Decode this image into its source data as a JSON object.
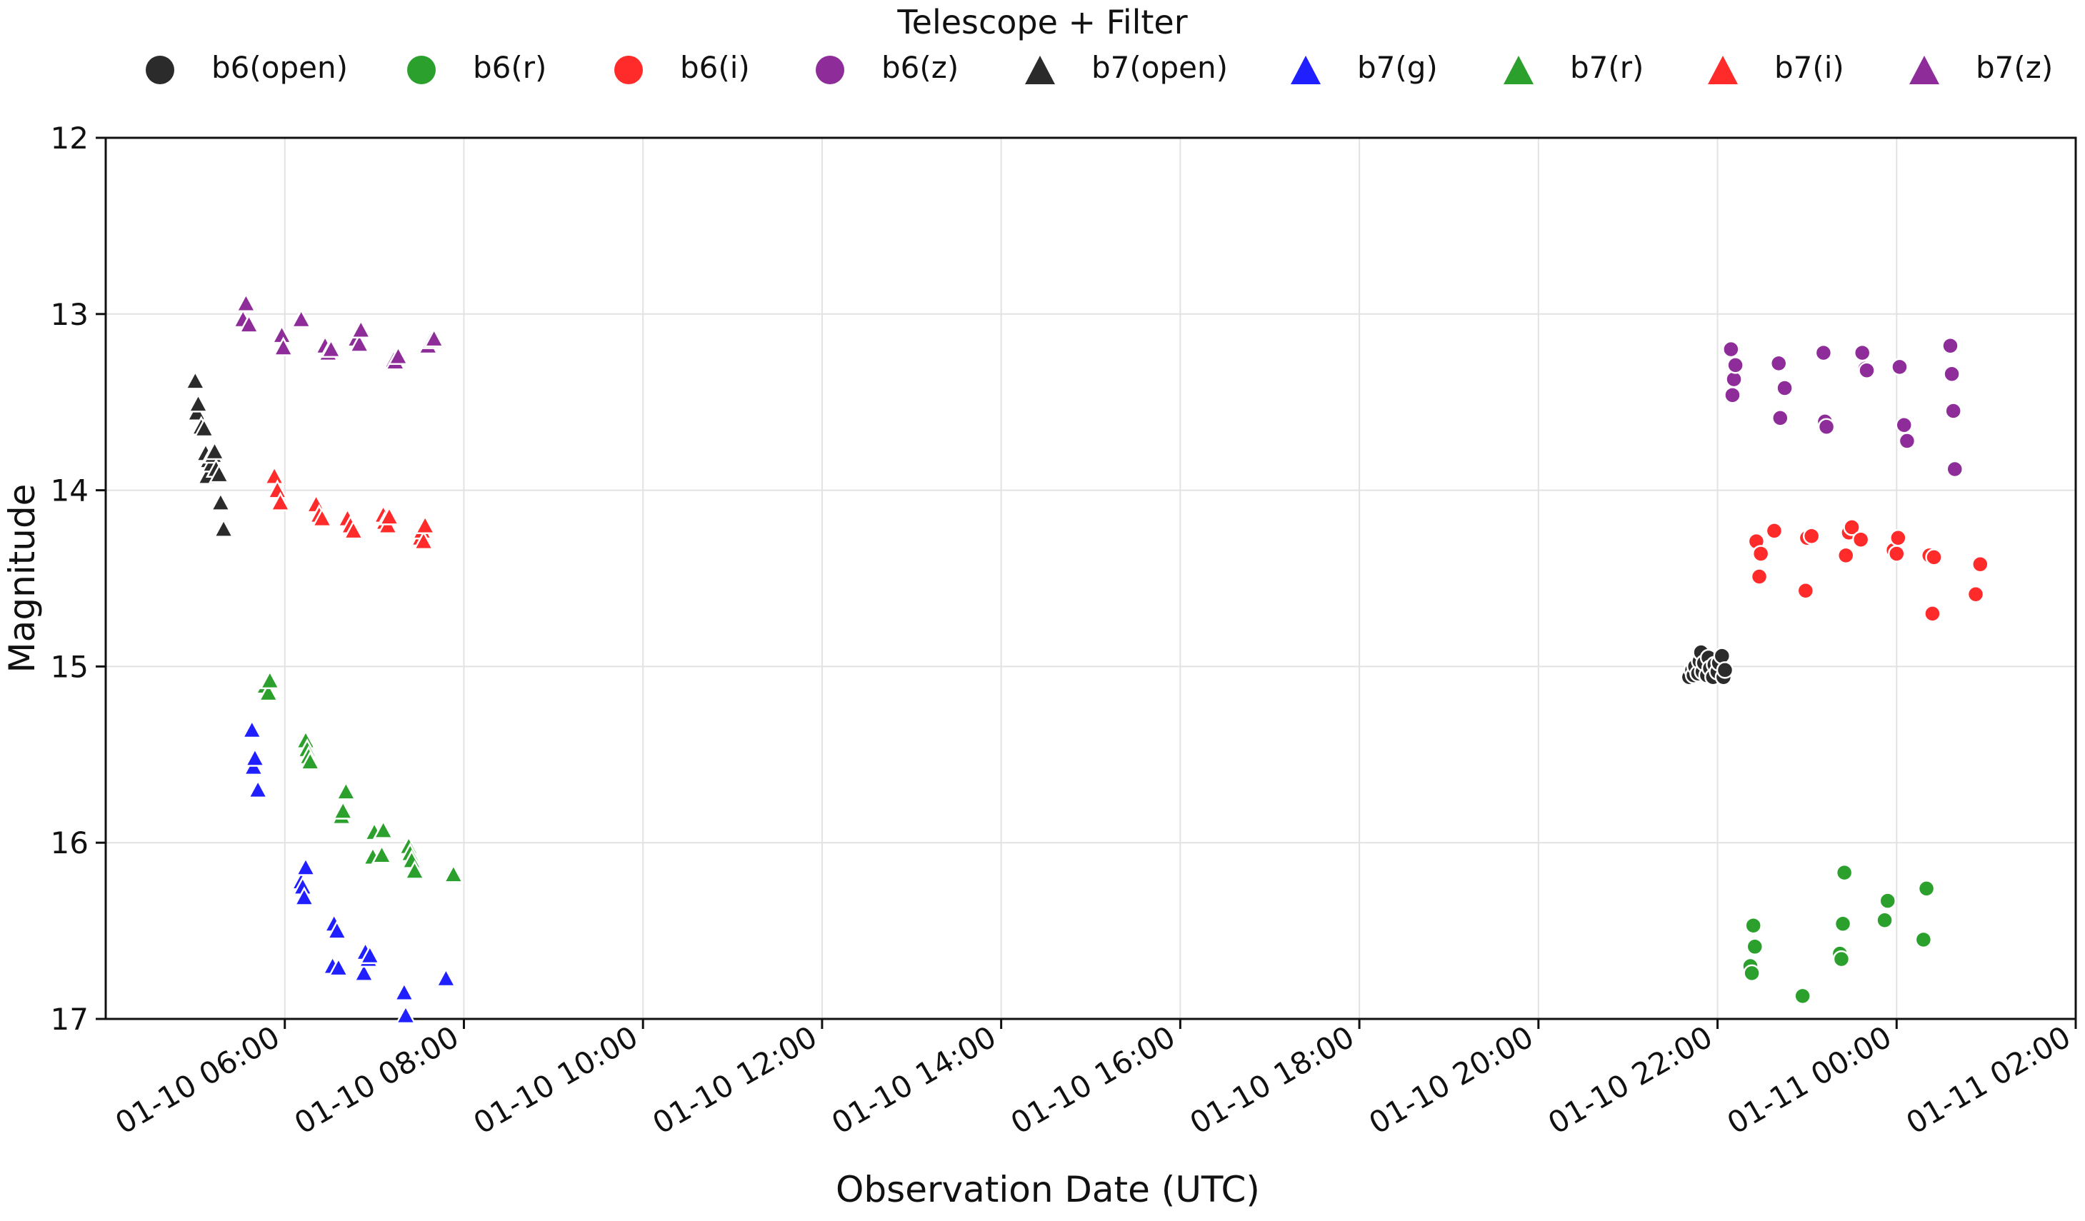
{
  "chart_data": {
    "type": "scatter",
    "xlabel": "Observation Date (UTC)",
    "ylabel": "Magnitude",
    "x_type": "datetime",
    "xlim": [
      "2026-01-10T04:00",
      "2026-01-11T02:00"
    ],
    "ylim": [
      17,
      12
    ],
    "y_inverted": true,
    "grid": true,
    "x_ticks": [
      "2026-01-10T06:00",
      "2026-01-10T08:00",
      "2026-01-10T10:00",
      "2026-01-10T12:00",
      "2026-01-10T14:00",
      "2026-01-10T16:00",
      "2026-01-10T18:00",
      "2026-01-10T20:00",
      "2026-01-10T22:00",
      "2026-01-11T00:00",
      "2026-01-11T02:00"
    ],
    "x_tick_labels": [
      "01-10 06:00",
      "01-10 08:00",
      "01-10 10:00",
      "01-10 12:00",
      "01-10 14:00",
      "01-10 16:00",
      "01-10 18:00",
      "01-10 20:00",
      "01-10 22:00",
      "01-11 00:00",
      "01-11 02:00"
    ],
    "y_ticks": [
      12,
      13,
      14,
      15,
      16,
      17
    ],
    "y_tick_labels": [
      "12",
      "13",
      "14",
      "15",
      "16",
      "17"
    ],
    "legend": {
      "title": "Telescope + Filter",
      "placement": "top-center"
    },
    "series": [
      {
        "name": "b6(open)",
        "marker": "circle",
        "color": "#2b2b2b",
        "points": [
          [
            "2026-01-10T21:41",
            15.06
          ],
          [
            "2026-01-10T21:43",
            15.02
          ],
          [
            "2026-01-10T21:44",
            15.05
          ],
          [
            "2026-01-10T21:45",
            15.0
          ],
          [
            "2026-01-10T21:47",
            15.04
          ],
          [
            "2026-01-10T21:48",
            14.97
          ],
          [
            "2026-01-10T21:49",
            14.92
          ],
          [
            "2026-01-10T21:50",
            15.03
          ],
          [
            "2026-01-10T21:51",
            14.98
          ],
          [
            "2026-01-10T21:53",
            15.05
          ],
          [
            "2026-01-10T21:54",
            14.95
          ],
          [
            "2026-01-10T21:55",
            15.01
          ],
          [
            "2026-01-10T21:57",
            15.06
          ],
          [
            "2026-01-10T21:58",
            14.99
          ],
          [
            "2026-01-10T22:00",
            15.03
          ],
          [
            "2026-01-10T22:01",
            14.98
          ],
          [
            "2026-01-10T22:03",
            14.94
          ],
          [
            "2026-01-10T22:04",
            15.06
          ],
          [
            "2026-01-10T22:05",
            15.02
          ]
        ]
      },
      {
        "name": "b6(r)",
        "marker": "circle",
        "color": "#2ca02c",
        "points": [
          [
            "2026-01-10T22:22",
            16.7
          ],
          [
            "2026-01-10T22:23",
            16.74
          ],
          [
            "2026-01-10T22:24",
            16.47
          ],
          [
            "2026-01-10T22:25",
            16.59
          ],
          [
            "2026-01-10T22:57",
            16.87
          ],
          [
            "2026-01-10T23:22",
            16.63
          ],
          [
            "2026-01-10T23:23",
            16.66
          ],
          [
            "2026-01-10T23:24",
            16.46
          ],
          [
            "2026-01-10T23:25",
            16.17
          ],
          [
            "2026-01-10T23:52",
            16.44
          ],
          [
            "2026-01-10T23:54",
            16.33
          ],
          [
            "2026-01-11T00:18",
            16.55
          ],
          [
            "2026-01-11T00:20",
            16.26
          ]
        ]
      },
      {
        "name": "b6(i)",
        "marker": "circle",
        "color": "#ff2a2a",
        "points": [
          [
            "2026-01-10T22:26",
            14.29
          ],
          [
            "2026-01-10T22:28",
            14.49
          ],
          [
            "2026-01-10T22:29",
            14.36
          ],
          [
            "2026-01-10T22:38",
            14.23
          ],
          [
            "2026-01-10T22:59",
            14.57
          ],
          [
            "2026-01-10T23:00",
            14.27
          ],
          [
            "2026-01-10T23:03",
            14.26
          ],
          [
            "2026-01-10T23:26",
            14.37
          ],
          [
            "2026-01-10T23:28",
            14.24
          ],
          [
            "2026-01-10T23:30",
            14.21
          ],
          [
            "2026-01-10T23:36",
            14.28
          ],
          [
            "2026-01-10T23:58",
            14.34
          ],
          [
            "2026-01-11T00:00",
            14.36
          ],
          [
            "2026-01-11T00:01",
            14.27
          ],
          [
            "2026-01-11T00:22",
            14.37
          ],
          [
            "2026-01-11T00:24",
            14.7
          ],
          [
            "2026-01-11T00:25",
            14.38
          ],
          [
            "2026-01-11T00:53",
            14.59
          ],
          [
            "2026-01-11T00:56",
            14.42
          ]
        ]
      },
      {
        "name": "b6(z)",
        "marker": "circle",
        "color": "#8e2c9a",
        "points": [
          [
            "2026-01-10T22:09",
            13.2
          ],
          [
            "2026-01-10T22:10",
            13.46
          ],
          [
            "2026-01-10T22:11",
            13.37
          ],
          [
            "2026-01-10T22:12",
            13.29
          ],
          [
            "2026-01-10T22:41",
            13.28
          ],
          [
            "2026-01-10T22:42",
            13.59
          ],
          [
            "2026-01-10T22:45",
            13.42
          ],
          [
            "2026-01-10T23:11",
            13.22
          ],
          [
            "2026-01-10T23:12",
            13.61
          ],
          [
            "2026-01-10T23:13",
            13.64
          ],
          [
            "2026-01-10T23:37",
            13.22
          ],
          [
            "2026-01-10T23:39",
            13.31
          ],
          [
            "2026-01-10T23:40",
            13.32
          ],
          [
            "2026-01-11T00:02",
            13.3
          ],
          [
            "2026-01-11T00:05",
            13.63
          ],
          [
            "2026-01-11T00:07",
            13.72
          ],
          [
            "2026-01-11T00:36",
            13.18
          ],
          [
            "2026-01-11T00:37",
            13.34
          ],
          [
            "2026-01-11T00:38",
            13.55
          ],
          [
            "2026-01-11T00:39",
            13.88
          ]
        ]
      },
      {
        "name": "b7(open)",
        "marker": "triangle",
        "color": "#2b2b2b",
        "points": [
          [
            "2026-01-10T05:00",
            13.38
          ],
          [
            "2026-01-10T05:01",
            13.56
          ],
          [
            "2026-01-10T05:02",
            13.51
          ],
          [
            "2026-01-10T05:04",
            13.64
          ],
          [
            "2026-01-10T05:06",
            13.65
          ],
          [
            "2026-01-10T05:07",
            13.79
          ],
          [
            "2026-01-10T05:08",
            13.92
          ],
          [
            "2026-01-10T05:09",
            13.83
          ],
          [
            "2026-01-10T05:11",
            13.85
          ],
          [
            "2026-01-10T05:12",
            13.8
          ],
          [
            "2026-01-10T05:13",
            13.78
          ],
          [
            "2026-01-10T05:14",
            13.88
          ],
          [
            "2026-01-10T05:16",
            13.91
          ],
          [
            "2026-01-10T05:17",
            14.07
          ],
          [
            "2026-01-10T05:19",
            14.22
          ]
        ]
      },
      {
        "name": "b7(g)",
        "marker": "triangle",
        "color": "#1f1fff",
        "points": [
          [
            "2026-01-10T05:38",
            15.36
          ],
          [
            "2026-01-10T05:39",
            15.57
          ],
          [
            "2026-01-10T05:40",
            15.52
          ],
          [
            "2026-01-10T05:42",
            15.7
          ],
          [
            "2026-01-10T06:11",
            16.22
          ],
          [
            "2026-01-10T06:12",
            16.25
          ],
          [
            "2026-01-10T06:13",
            16.31
          ],
          [
            "2026-01-10T06:14",
            16.14
          ],
          [
            "2026-01-10T06:32",
            16.7
          ],
          [
            "2026-01-10T06:33",
            16.46
          ],
          [
            "2026-01-10T06:35",
            16.5
          ],
          [
            "2026-01-10T06:36",
            16.71
          ],
          [
            "2026-01-10T06:53",
            16.74
          ],
          [
            "2026-01-10T06:54",
            16.62
          ],
          [
            "2026-01-10T06:56",
            16.66
          ],
          [
            "2026-01-10T06:57",
            16.64
          ],
          [
            "2026-01-10T07:20",
            16.85
          ],
          [
            "2026-01-10T07:21",
            16.98
          ],
          [
            "2026-01-10T07:48",
            16.77
          ]
        ]
      },
      {
        "name": "b7(r)",
        "marker": "triangle",
        "color": "#2ca02c",
        "points": [
          [
            "2026-01-10T05:47",
            15.11
          ],
          [
            "2026-01-10T05:49",
            15.15
          ],
          [
            "2026-01-10T05:50",
            15.08
          ],
          [
            "2026-01-10T06:14",
            15.42
          ],
          [
            "2026-01-10T06:15",
            15.47
          ],
          [
            "2026-01-10T06:16",
            15.51
          ],
          [
            "2026-01-10T06:17",
            15.54
          ],
          [
            "2026-01-10T06:38",
            15.85
          ],
          [
            "2026-01-10T06:39",
            15.82
          ],
          [
            "2026-01-10T06:41",
            15.71
          ],
          [
            "2026-01-10T06:59",
            16.08
          ],
          [
            "2026-01-10T07:00",
            15.94
          ],
          [
            "2026-01-10T07:05",
            16.07
          ],
          [
            "2026-01-10T07:06",
            15.93
          ],
          [
            "2026-01-10T07:23",
            16.02
          ],
          [
            "2026-01-10T07:24",
            16.06
          ],
          [
            "2026-01-10T07:25",
            16.1
          ],
          [
            "2026-01-10T07:27",
            16.16
          ],
          [
            "2026-01-10T07:53",
            16.18
          ]
        ]
      },
      {
        "name": "b7(i)",
        "marker": "triangle",
        "color": "#ff2a2a",
        "points": [
          [
            "2026-01-10T05:53",
            13.92
          ],
          [
            "2026-01-10T05:55",
            14.0
          ],
          [
            "2026-01-10T05:57",
            14.07
          ],
          [
            "2026-01-10T06:21",
            14.08
          ],
          [
            "2026-01-10T06:23",
            14.14
          ],
          [
            "2026-01-10T06:25",
            14.16
          ],
          [
            "2026-01-10T06:42",
            14.16
          ],
          [
            "2026-01-10T06:44",
            14.2
          ],
          [
            "2026-01-10T06:46",
            14.23
          ],
          [
            "2026-01-10T07:06",
            14.14
          ],
          [
            "2026-01-10T07:07",
            14.18
          ],
          [
            "2026-01-10T07:09",
            14.2
          ],
          [
            "2026-01-10T07:10",
            14.15
          ],
          [
            "2026-01-10T07:31",
            14.27
          ],
          [
            "2026-01-10T07:32",
            14.23
          ],
          [
            "2026-01-10T07:33",
            14.29
          ],
          [
            "2026-01-10T07:34",
            14.2
          ]
        ]
      },
      {
        "name": "b7(z)",
        "marker": "triangle",
        "color": "#8e2c9a",
        "points": [
          [
            "2026-01-10T05:32",
            13.03
          ],
          [
            "2026-01-10T05:34",
            12.94
          ],
          [
            "2026-01-10T05:36",
            13.06
          ],
          [
            "2026-01-10T05:58",
            13.12
          ],
          [
            "2026-01-10T05:59",
            13.19
          ],
          [
            "2026-01-10T06:10",
            13.04
          ],
          [
            "2026-01-10T06:11",
            13.03
          ],
          [
            "2026-01-10T06:27",
            13.18
          ],
          [
            "2026-01-10T06:29",
            13.22
          ],
          [
            "2026-01-10T06:31",
            13.2
          ],
          [
            "2026-01-10T06:48",
            13.14
          ],
          [
            "2026-01-10T06:50",
            13.17
          ],
          [
            "2026-01-10T06:51",
            13.09
          ],
          [
            "2026-01-10T07:13",
            13.26
          ],
          [
            "2026-01-10T07:14",
            13.27
          ],
          [
            "2026-01-10T07:16",
            13.24
          ],
          [
            "2026-01-10T07:36",
            13.18
          ],
          [
            "2026-01-10T07:38",
            13.15
          ],
          [
            "2026-01-10T07:40",
            13.14
          ]
        ]
      }
    ]
  }
}
